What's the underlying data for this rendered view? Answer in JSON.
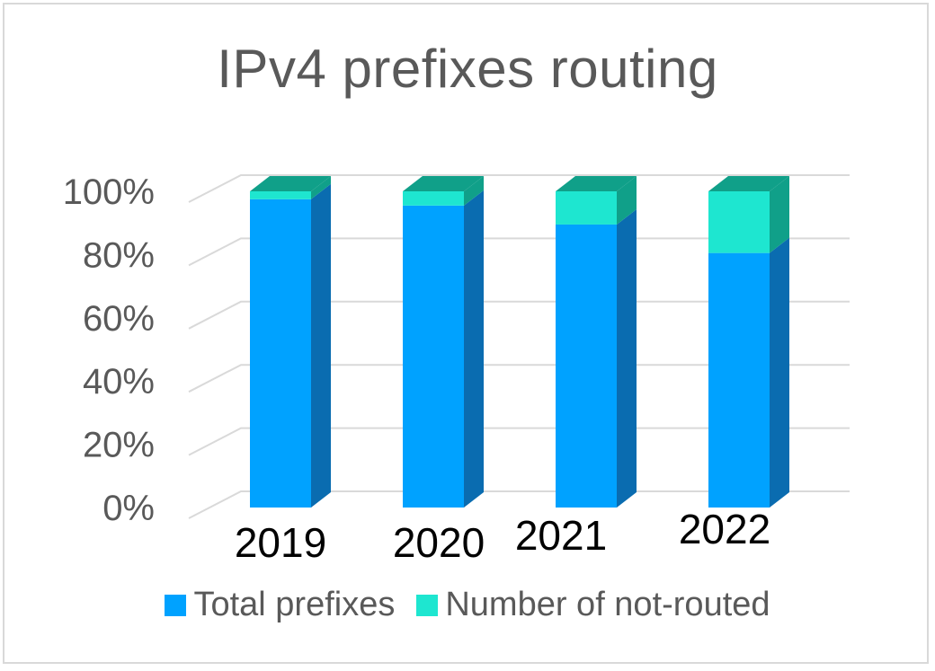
{
  "chart_data": {
    "type": "bar",
    "title": "IPv4 prefixes routing",
    "categories": [
      "2019",
      "2020",
      "2021",
      "2022"
    ],
    "series": [
      {
        "name": "Total prefixes",
        "values": [
          97.5,
          95.5,
          89.5,
          80.5
        ]
      },
      {
        "name": "Number of not-routed",
        "values": [
          2.5,
          4.5,
          10.5,
          19.5
        ]
      }
    ],
    "ylim": [
      0,
      100
    ],
    "yticks": [
      "0%",
      "20%",
      "40%",
      "60%",
      "80%",
      "100%"
    ],
    "stacked": true,
    "grid": true,
    "legend": "bottom",
    "colors": {
      "total": "#00a2ff",
      "total_side": "#0a6cb0",
      "not_routed": "#1ee6d0",
      "not_routed_side": "#10a089",
      "grid": "#d9d9d9",
      "tick_text": "#595959",
      "category_text": "#000000"
    }
  }
}
